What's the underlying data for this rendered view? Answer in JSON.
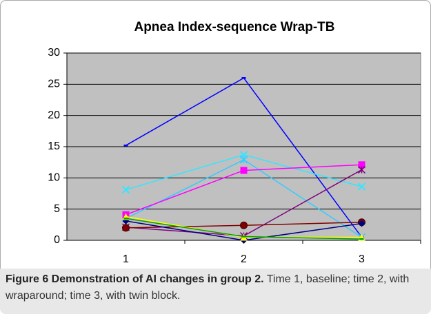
{
  "chart_data": {
    "type": "line",
    "title": "Apnea Index-sequence Wrap-TB",
    "categories": [
      "1",
      "2",
      "3"
    ],
    "ylim": [
      0,
      30
    ],
    "yticks": [
      0,
      5,
      10,
      15,
      20,
      25,
      30
    ],
    "grid": true,
    "series": [
      {
        "color": "#0000ff",
        "marker": "dash",
        "values": [
          15.2,
          26,
          0.5
        ]
      },
      {
        "color": "#33e6ff",
        "marker": "x",
        "values": [
          8.1,
          13.7,
          8.6
        ]
      },
      {
        "color": "#33ccff",
        "marker": "star",
        "values": [
          3.5,
          12.9,
          0.5
        ]
      },
      {
        "color": "#ff00ff",
        "marker": "square",
        "values": [
          4.1,
          11.2,
          12.1
        ]
      },
      {
        "color": "#800080",
        "marker": "star",
        "values": [
          2.1,
          0.7,
          11.3
        ]
      },
      {
        "color": "#800000",
        "marker": "circle",
        "values": [
          2.0,
          2.4,
          2.9
        ]
      },
      {
        "color": "#000080",
        "marker": "diamond",
        "values": [
          3.1,
          0,
          2.7
        ]
      },
      {
        "color": "#ffff00",
        "marker": "triangle",
        "values": [
          3.8,
          0.5,
          0.5
        ]
      },
      {
        "color": "#00a000",
        "marker": "dash",
        "values": [
          3.5,
          0.6,
          0.2
        ]
      }
    ]
  },
  "caption": {
    "label": "Figure 6 Demonstration of AI changes in group 2.",
    "text": "Time 1, baseline; time 2, with wraparound; time 3, with twin block."
  }
}
